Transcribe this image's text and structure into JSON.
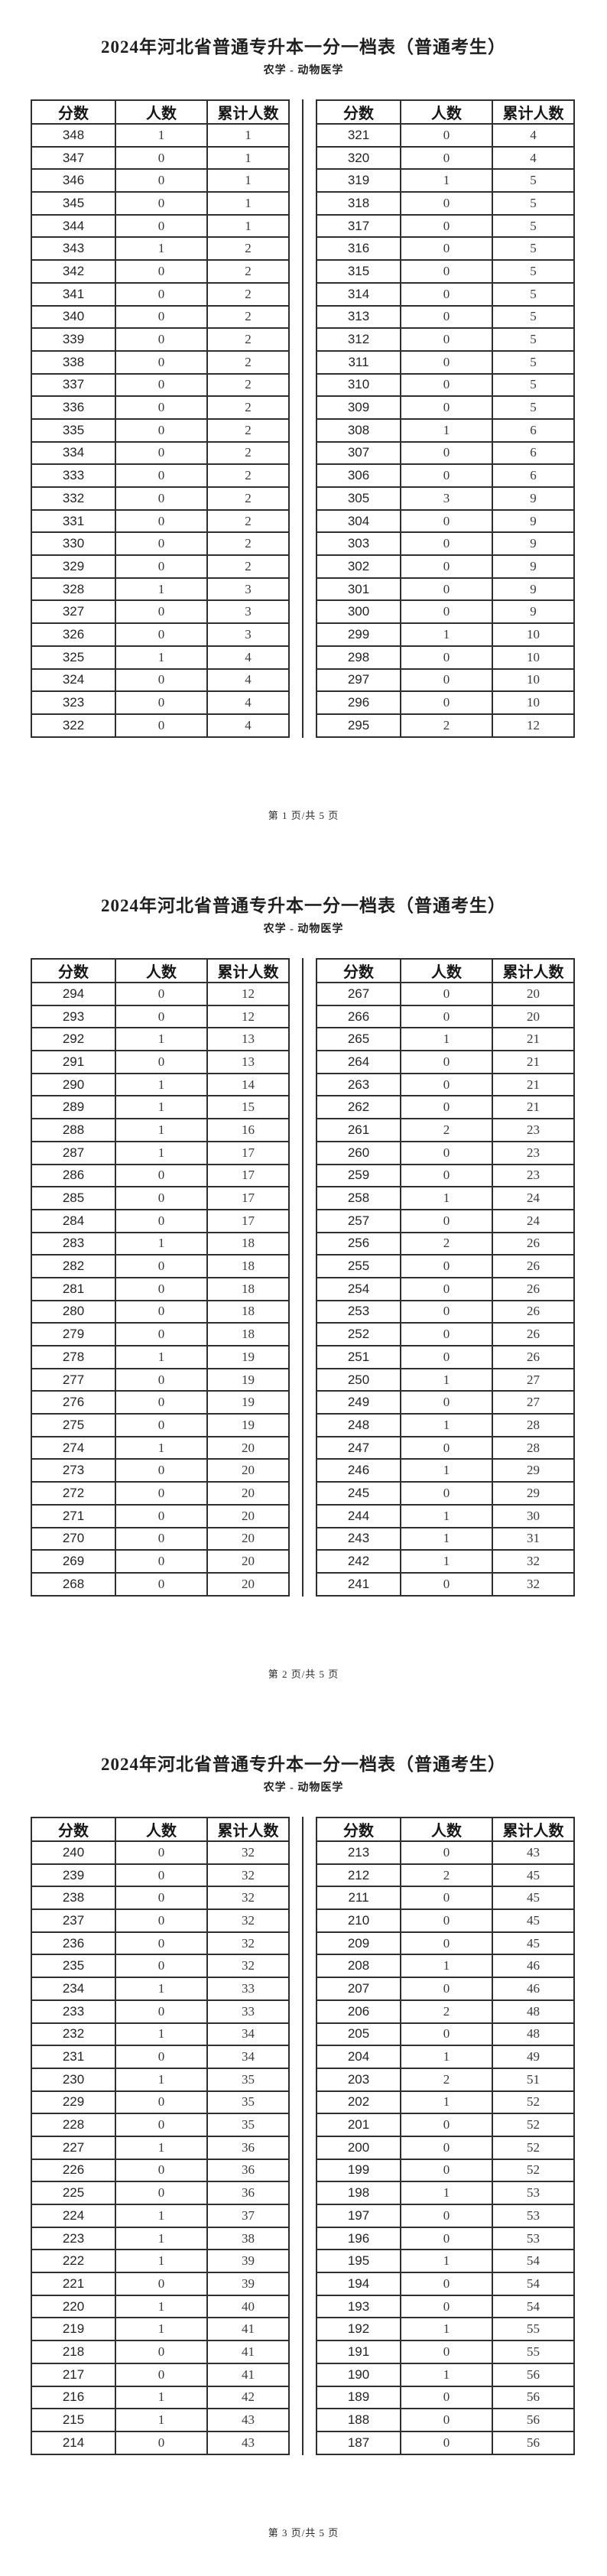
{
  "document": {
    "title": "2024年河北省普通专升本一分一档表（普通考生）",
    "subtitle": "农学 - 动物医学",
    "columns": [
      "分数",
      "人数",
      "累计人数"
    ],
    "column_meanings": [
      "score",
      "count",
      "cumulative_count"
    ],
    "colors": {
      "background": "#ffffff",
      "text": "#1f1f1f",
      "table_border": "#2f2f2f",
      "number_text": "#3a3a3a"
    }
  },
  "pages": [
    {
      "footer": "第 1 页/共 5 页",
      "left_table": [
        [
          348,
          1,
          1
        ],
        [
          347,
          0,
          1
        ],
        [
          346,
          0,
          1
        ],
        [
          345,
          0,
          1
        ],
        [
          344,
          0,
          1
        ],
        [
          343,
          1,
          2
        ],
        [
          342,
          0,
          2
        ],
        [
          341,
          0,
          2
        ],
        [
          340,
          0,
          2
        ],
        [
          339,
          0,
          2
        ],
        [
          338,
          0,
          2
        ],
        [
          337,
          0,
          2
        ],
        [
          336,
          0,
          2
        ],
        [
          335,
          0,
          2
        ],
        [
          334,
          0,
          2
        ],
        [
          333,
          0,
          2
        ],
        [
          332,
          0,
          2
        ],
        [
          331,
          0,
          2
        ],
        [
          330,
          0,
          2
        ],
        [
          329,
          0,
          2
        ],
        [
          328,
          1,
          3
        ],
        [
          327,
          0,
          3
        ],
        [
          326,
          0,
          3
        ],
        [
          325,
          1,
          4
        ],
        [
          324,
          0,
          4
        ],
        [
          323,
          0,
          4
        ],
        [
          322,
          0,
          4
        ]
      ],
      "right_table": [
        [
          321,
          0,
          4
        ],
        [
          320,
          0,
          4
        ],
        [
          319,
          1,
          5
        ],
        [
          318,
          0,
          5
        ],
        [
          317,
          0,
          5
        ],
        [
          316,
          0,
          5
        ],
        [
          315,
          0,
          5
        ],
        [
          314,
          0,
          5
        ],
        [
          313,
          0,
          5
        ],
        [
          312,
          0,
          5
        ],
        [
          311,
          0,
          5
        ],
        [
          310,
          0,
          5
        ],
        [
          309,
          0,
          5
        ],
        [
          308,
          1,
          6
        ],
        [
          307,
          0,
          6
        ],
        [
          306,
          0,
          6
        ],
        [
          305,
          3,
          9
        ],
        [
          304,
          0,
          9
        ],
        [
          303,
          0,
          9
        ],
        [
          302,
          0,
          9
        ],
        [
          301,
          0,
          9
        ],
        [
          300,
          0,
          9
        ],
        [
          299,
          1,
          10
        ],
        [
          298,
          0,
          10
        ],
        [
          297,
          0,
          10
        ],
        [
          296,
          0,
          10
        ],
        [
          295,
          2,
          12
        ]
      ]
    },
    {
      "footer": "第 2 页/共 5 页",
      "left_table": [
        [
          294,
          0,
          12
        ],
        [
          293,
          0,
          12
        ],
        [
          292,
          1,
          13
        ],
        [
          291,
          0,
          13
        ],
        [
          290,
          1,
          14
        ],
        [
          289,
          1,
          15
        ],
        [
          288,
          1,
          16
        ],
        [
          287,
          1,
          17
        ],
        [
          286,
          0,
          17
        ],
        [
          285,
          0,
          17
        ],
        [
          284,
          0,
          17
        ],
        [
          283,
          1,
          18
        ],
        [
          282,
          0,
          18
        ],
        [
          281,
          0,
          18
        ],
        [
          280,
          0,
          18
        ],
        [
          279,
          0,
          18
        ],
        [
          278,
          1,
          19
        ],
        [
          277,
          0,
          19
        ],
        [
          276,
          0,
          19
        ],
        [
          275,
          0,
          19
        ],
        [
          274,
          1,
          20
        ],
        [
          273,
          0,
          20
        ],
        [
          272,
          0,
          20
        ],
        [
          271,
          0,
          20
        ],
        [
          270,
          0,
          20
        ],
        [
          269,
          0,
          20
        ],
        [
          268,
          0,
          20
        ]
      ],
      "right_table": [
        [
          267,
          0,
          20
        ],
        [
          266,
          0,
          20
        ],
        [
          265,
          1,
          21
        ],
        [
          264,
          0,
          21
        ],
        [
          263,
          0,
          21
        ],
        [
          262,
          0,
          21
        ],
        [
          261,
          2,
          23
        ],
        [
          260,
          0,
          23
        ],
        [
          259,
          0,
          23
        ],
        [
          258,
          1,
          24
        ],
        [
          257,
          0,
          24
        ],
        [
          256,
          2,
          26
        ],
        [
          255,
          0,
          26
        ],
        [
          254,
          0,
          26
        ],
        [
          253,
          0,
          26
        ],
        [
          252,
          0,
          26
        ],
        [
          251,
          0,
          26
        ],
        [
          250,
          1,
          27
        ],
        [
          249,
          0,
          27
        ],
        [
          248,
          1,
          28
        ],
        [
          247,
          0,
          28
        ],
        [
          246,
          1,
          29
        ],
        [
          245,
          0,
          29
        ],
        [
          244,
          1,
          30
        ],
        [
          243,
          1,
          31
        ],
        [
          242,
          1,
          32
        ],
        [
          241,
          0,
          32
        ]
      ]
    },
    {
      "footer": "第 3 页/共 5 页",
      "left_table": [
        [
          240,
          0,
          32
        ],
        [
          239,
          0,
          32
        ],
        [
          238,
          0,
          32
        ],
        [
          237,
          0,
          32
        ],
        [
          236,
          0,
          32
        ],
        [
          235,
          0,
          32
        ],
        [
          234,
          1,
          33
        ],
        [
          233,
          0,
          33
        ],
        [
          232,
          1,
          34
        ],
        [
          231,
          0,
          34
        ],
        [
          230,
          1,
          35
        ],
        [
          229,
          0,
          35
        ],
        [
          228,
          0,
          35
        ],
        [
          227,
          1,
          36
        ],
        [
          226,
          0,
          36
        ],
        [
          225,
          0,
          36
        ],
        [
          224,
          1,
          37
        ],
        [
          223,
          1,
          38
        ],
        [
          222,
          1,
          39
        ],
        [
          221,
          0,
          39
        ],
        [
          220,
          1,
          40
        ],
        [
          219,
          1,
          41
        ],
        [
          218,
          0,
          41
        ],
        [
          217,
          0,
          41
        ],
        [
          216,
          1,
          42
        ],
        [
          215,
          1,
          43
        ],
        [
          214,
          0,
          43
        ]
      ],
      "right_table": [
        [
          213,
          0,
          43
        ],
        [
          212,
          2,
          45
        ],
        [
          211,
          0,
          45
        ],
        [
          210,
          0,
          45
        ],
        [
          209,
          0,
          45
        ],
        [
          208,
          1,
          46
        ],
        [
          207,
          0,
          46
        ],
        [
          206,
          2,
          48
        ],
        [
          205,
          0,
          48
        ],
        [
          204,
          1,
          49
        ],
        [
          203,
          2,
          51
        ],
        [
          202,
          1,
          52
        ],
        [
          201,
          0,
          52
        ],
        [
          200,
          0,
          52
        ],
        [
          199,
          0,
          52
        ],
        [
          198,
          1,
          53
        ],
        [
          197,
          0,
          53
        ],
        [
          196,
          0,
          53
        ],
        [
          195,
          1,
          54
        ],
        [
          194,
          0,
          54
        ],
        [
          193,
          0,
          54
        ],
        [
          192,
          1,
          55
        ],
        [
          191,
          0,
          55
        ],
        [
          190,
          1,
          56
        ],
        [
          189,
          0,
          56
        ],
        [
          188,
          0,
          56
        ],
        [
          187,
          0,
          56
        ]
      ]
    }
  ]
}
